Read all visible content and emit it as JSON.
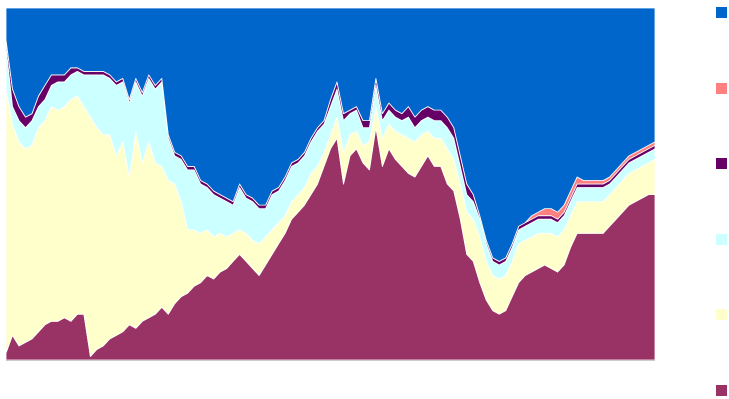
{
  "chart_data": {
    "type": "area",
    "stacked": true,
    "normalized": true,
    "title": "",
    "xlabel": "",
    "ylabel": "",
    "ylim": [
      0,
      1
    ],
    "grid": false,
    "legend_placement": "right",
    "x": [
      0,
      1,
      2,
      3,
      4,
      5,
      6,
      7,
      8,
      9,
      10,
      11,
      12,
      13,
      14,
      15,
      16,
      17,
      18,
      19,
      20,
      21,
      22,
      23,
      24,
      25,
      26,
      27,
      28,
      29,
      30,
      31,
      32,
      33,
      34,
      35,
      36,
      37,
      38,
      39,
      40,
      41,
      42,
      43,
      44,
      45,
      46,
      47,
      48,
      49,
      50,
      51,
      52,
      53,
      54,
      55,
      56,
      57,
      58,
      59,
      60,
      61,
      62,
      63,
      64,
      65,
      66,
      67,
      68,
      69,
      70,
      71,
      72,
      73,
      74,
      75,
      76,
      77,
      78,
      79,
      80,
      81,
      82,
      83,
      84,
      85,
      86,
      87,
      88,
      89,
      90,
      91,
      92,
      93,
      94,
      95,
      96,
      97,
      98,
      99,
      100
    ],
    "series": [
      {
        "color": "#993366",
        "values": [
          0.02,
          0.07,
          0.04,
          0.05,
          0.06,
          0.08,
          0.1,
          0.11,
          0.11,
          0.12,
          0.11,
          0.13,
          0.13,
          0.01,
          0.03,
          0.04,
          0.06,
          0.07,
          0.08,
          0.1,
          0.09,
          0.11,
          0.12,
          0.13,
          0.15,
          0.13,
          0.16,
          0.18,
          0.19,
          0.21,
          0.22,
          0.24,
          0.23,
          0.25,
          0.26,
          0.28,
          0.3,
          0.28,
          0.26,
          0.24,
          0.27,
          0.3,
          0.33,
          0.36,
          0.4,
          0.42,
          0.44,
          0.47,
          0.5,
          0.55,
          0.6,
          0.63,
          0.5,
          0.58,
          0.6,
          0.56,
          0.54,
          0.66,
          0.55,
          0.6,
          0.57,
          0.55,
          0.53,
          0.52,
          0.55,
          0.58,
          0.55,
          0.55,
          0.5,
          0.48,
          0.4,
          0.3,
          0.28,
          0.22,
          0.17,
          0.14,
          0.13,
          0.14,
          0.18,
          0.22,
          0.24,
          0.25,
          0.26,
          0.27,
          0.26,
          0.25,
          0.27,
          0.32,
          0.36,
          0.36,
          0.36,
          0.36,
          0.36,
          0.38,
          0.4,
          0.42,
          0.44,
          0.45,
          0.46,
          0.47,
          0.47
        ]
      },
      {
        "color": "#ffffcc",
        "values": [
          0.75,
          0.6,
          0.58,
          0.55,
          0.55,
          0.58,
          0.58,
          0.61,
          0.6,
          0.6,
          0.63,
          0.62,
          0.59,
          0.68,
          0.63,
          0.6,
          0.58,
          0.51,
          0.54,
          0.42,
          0.56,
          0.45,
          0.5,
          0.43,
          0.4,
          0.38,
          0.34,
          0.27,
          0.18,
          0.16,
          0.14,
          0.13,
          0.12,
          0.11,
          0.09,
          0.08,
          0.07,
          0.08,
          0.08,
          0.09,
          0.08,
          0.07,
          0.06,
          0.05,
          0.05,
          0.05,
          0.05,
          0.06,
          0.05,
          0.04,
          0.04,
          0.06,
          0.09,
          0.06,
          0.05,
          0.05,
          0.08,
          0.06,
          0.08,
          0.07,
          0.08,
          0.09,
          0.1,
          0.1,
          0.09,
          0.07,
          0.08,
          0.08,
          0.1,
          0.09,
          0.1,
          0.12,
          0.12,
          0.13,
          0.11,
          0.1,
          0.1,
          0.1,
          0.1,
          0.11,
          0.1,
          0.1,
          0.1,
          0.09,
          0.1,
          0.1,
          0.1,
          0.09,
          0.09,
          0.09,
          0.09,
          0.09,
          0.09,
          0.09,
          0.09,
          0.09,
          0.09,
          0.09,
          0.09,
          0.09,
          0.1
        ]
      },
      {
        "color": "#ccffff",
        "values": [
          0.12,
          0.05,
          0.06,
          0.06,
          0.07,
          0.06,
          0.06,
          0.06,
          0.08,
          0.07,
          0.07,
          0.07,
          0.09,
          0.12,
          0.15,
          0.17,
          0.16,
          0.2,
          0.17,
          0.21,
          0.14,
          0.19,
          0.18,
          0.21,
          0.24,
          0.12,
          0.08,
          0.12,
          0.17,
          0.17,
          0.14,
          0.12,
          0.12,
          0.1,
          0.1,
          0.08,
          0.12,
          0.1,
          0.11,
          0.1,
          0.08,
          0.1,
          0.09,
          0.1,
          0.1,
          0.09,
          0.09,
          0.09,
          0.1,
          0.08,
          0.08,
          0.08,
          0.09,
          0.06,
          0.06,
          0.05,
          0.04,
          0.06,
          0.05,
          0.04,
          0.04,
          0.04,
          0.06,
          0.04,
          0.04,
          0.04,
          0.05,
          0.05,
          0.06,
          0.06,
          0.05,
          0.05,
          0.05,
          0.05,
          0.05,
          0.04,
          0.04,
          0.04,
          0.04,
          0.04,
          0.04,
          0.04,
          0.04,
          0.04,
          0.04,
          0.04,
          0.04,
          0.04,
          0.04,
          0.04,
          0.04,
          0.04,
          0.04,
          0.03,
          0.03,
          0.03,
          0.03,
          0.03,
          0.03,
          0.03,
          0.03
        ]
      },
      {
        "color": "#660066",
        "values": [
          0.02,
          0.05,
          0.04,
          0.03,
          0.02,
          0.03,
          0.04,
          0.03,
          0.02,
          0.02,
          0.02,
          0.01,
          0.01,
          0.01,
          0.01,
          0.01,
          0.01,
          0.01,
          0.01,
          0.01,
          0.01,
          0.01,
          0.01,
          0.01,
          0.01,
          0.01,
          0.01,
          0.01,
          0.01,
          0.01,
          0.01,
          0.01,
          0.01,
          0.01,
          0.01,
          0.01,
          0.01,
          0.01,
          0.01,
          0.01,
          0.01,
          0.01,
          0.01,
          0.01,
          0.01,
          0.01,
          0.01,
          0.01,
          0.01,
          0.01,
          0.02,
          0.02,
          0.02,
          0.01,
          0.01,
          0.02,
          0.02,
          0.02,
          0.02,
          0.02,
          0.02,
          0.02,
          0.03,
          0.03,
          0.03,
          0.03,
          0.03,
          0.03,
          0.03,
          0.03,
          0.03,
          0.03,
          0.02,
          0.01,
          0.01,
          0.01,
          0.01,
          0.01,
          0.01,
          0.01,
          0.01,
          0.01,
          0.01,
          0.01,
          0.01,
          0.01,
          0.01,
          0.01,
          0.01,
          0.01,
          0.01,
          0.01,
          0.01,
          0.01,
          0.01,
          0.01,
          0.01,
          0.01,
          0.01,
          0.01,
          0.01
        ]
      },
      {
        "color": "#ff8080",
        "values": [
          0,
          0,
          0,
          0,
          0,
          0,
          0,
          0,
          0,
          0,
          0,
          0,
          0,
          0,
          0,
          0,
          0,
          0,
          0,
          0,
          0,
          0,
          0,
          0,
          0,
          0,
          0,
          0,
          0,
          0,
          0,
          0,
          0,
          0,
          0,
          0,
          0,
          0,
          0,
          0,
          0,
          0,
          0,
          0,
          0,
          0,
          0,
          0,
          0,
          0,
          0,
          0,
          0,
          0,
          0,
          0,
          0,
          0,
          0,
          0,
          0,
          0,
          0,
          0,
          0,
          0,
          0,
          0,
          0,
          0,
          0,
          0,
          0,
          0,
          0,
          0,
          0,
          0,
          0,
          0,
          0,
          0.01,
          0.01,
          0.02,
          0.02,
          0.02,
          0.02,
          0.02,
          0.02,
          0.01,
          0.01,
          0.01,
          0.01,
          0.01,
          0.01,
          0.01,
          0.01,
          0.01,
          0.01,
          0.01,
          0.01
        ]
      },
      {
        "color": "#0066cc",
        "values": "rest"
      }
    ]
  },
  "legend": {
    "swatches": [
      {
        "color": "#0066cc",
        "name": "swatch-blue"
      },
      {
        "color": "#ff8080",
        "name": "swatch-salmon"
      },
      {
        "color": "#660066",
        "name": "swatch-dark-purple"
      },
      {
        "color": "#ccffff",
        "name": "swatch-light-cyan"
      },
      {
        "color": "#ffffcc",
        "name": "swatch-light-yellow"
      },
      {
        "color": "#993366",
        "name": "swatch-plum"
      }
    ]
  }
}
